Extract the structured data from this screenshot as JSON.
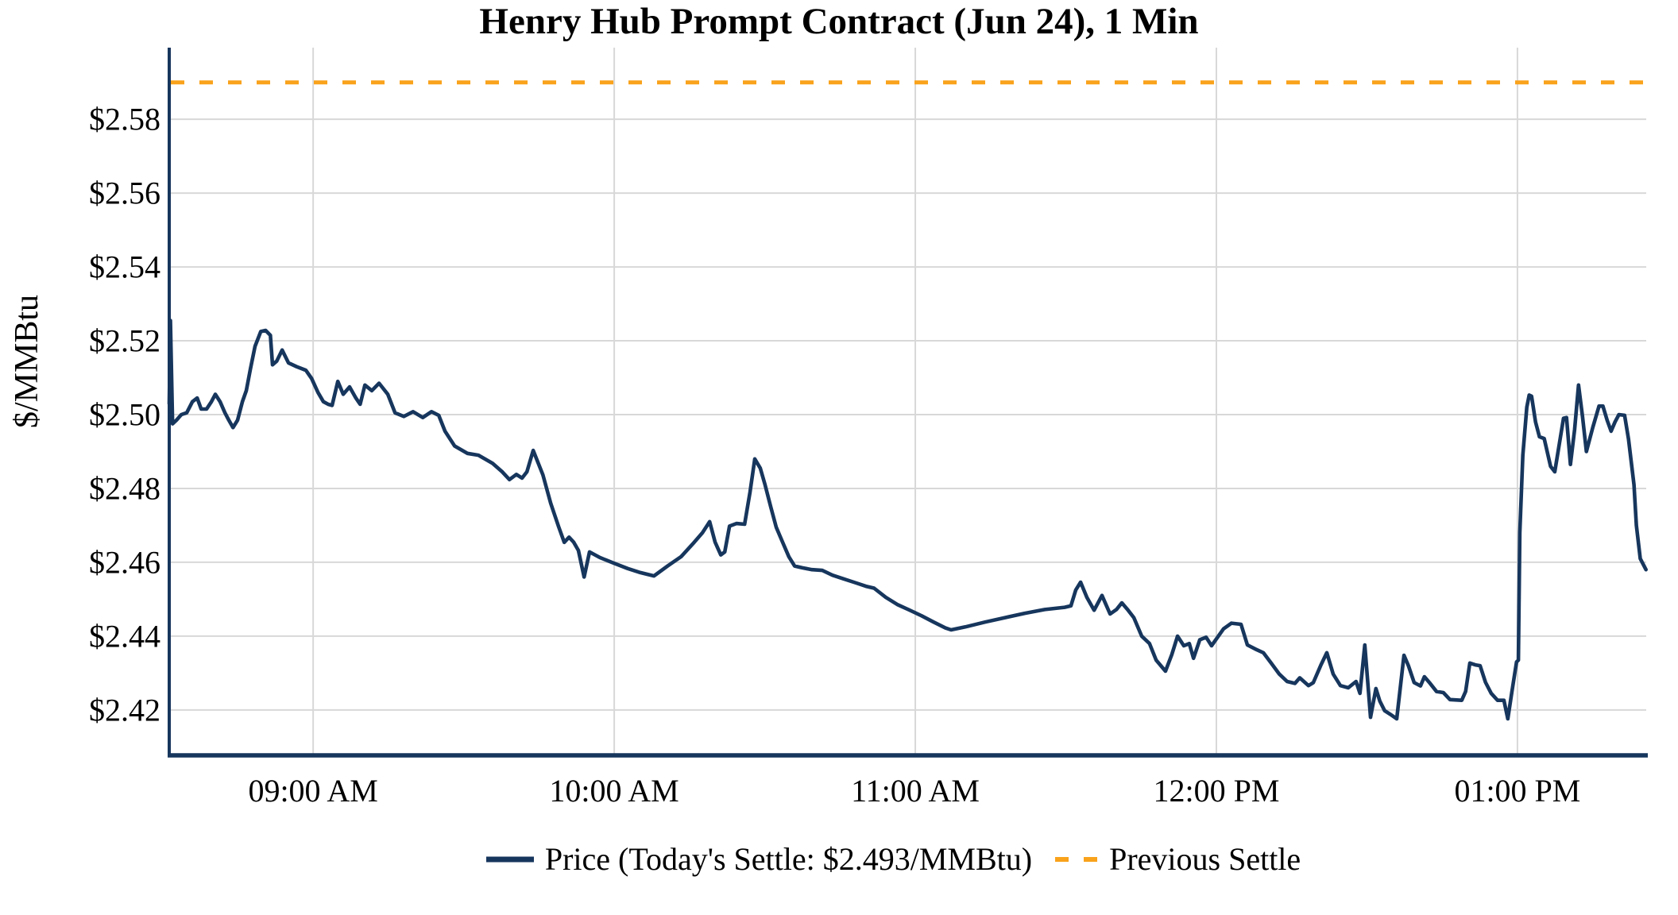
{
  "chart_data": {
    "type": "line",
    "title": "Henry Hub Prompt Contract (Jun 24), 1 Min",
    "ylabel": "$/MMBtu",
    "x_unit": "clock time, decimal hours",
    "x_range": [
      8.522,
      13.433
    ],
    "y_range": [
      2.4077,
      2.5994
    ],
    "grid": true,
    "legend_position": "bottom-center",
    "x_ticks": [
      {
        "value": 9,
        "label": "09:00 AM"
      },
      {
        "value": 10,
        "label": "10:00 AM"
      },
      {
        "value": 11,
        "label": "11:00 AM"
      },
      {
        "value": 12,
        "label": "12:00 PM"
      },
      {
        "value": 13,
        "label": "01:00 PM"
      }
    ],
    "y_ticks": [
      {
        "value": 2.58,
        "label": "$2.58"
      },
      {
        "value": 2.56,
        "label": "$2.56"
      },
      {
        "value": 2.54,
        "label": "$2.54"
      },
      {
        "value": 2.52,
        "label": "$2.52"
      },
      {
        "value": 2.5,
        "label": "$2.50"
      },
      {
        "value": 2.48,
        "label": "$2.48"
      },
      {
        "value": 2.46,
        "label": "$2.46"
      },
      {
        "value": 2.44,
        "label": "$2.44"
      },
      {
        "value": 2.42,
        "label": "$2.42"
      }
    ],
    "previous_settle": {
      "value": 2.59,
      "style": "dashed"
    },
    "todays_settle_value": 2.493,
    "legend": {
      "price_label": "Price (Today's Settle: $2.493/MMBtu)",
      "prev_settle_label": "Previous Settle"
    },
    "colors": {
      "price_line": "#17365D",
      "previous_settle": "#F9A21B",
      "gridline": "#D8D8D8",
      "axis": "#17365D",
      "background": "#FFFFFF",
      "text": "#000000"
    },
    "series": [
      {
        "name": "Price",
        "points": [
          [
            8.522,
            2.503
          ],
          [
            8.526,
            2.5255
          ],
          [
            8.533,
            2.4975
          ],
          [
            8.546,
            2.4985
          ],
          [
            8.562,
            2.5
          ],
          [
            8.58,
            2.5005
          ],
          [
            8.599,
            2.5035
          ],
          [
            8.615,
            2.5045
          ],
          [
            8.628,
            2.5015
          ],
          [
            8.646,
            2.5015
          ],
          [
            8.662,
            2.5035
          ],
          [
            8.675,
            2.5055
          ],
          [
            8.691,
            2.5035
          ],
          [
            8.707,
            2.5005
          ],
          [
            8.72,
            2.4985
          ],
          [
            8.734,
            2.4965
          ],
          [
            8.749,
            2.4985
          ],
          [
            8.765,
            2.5035
          ],
          [
            8.778,
            2.5065
          ],
          [
            8.792,
            2.5125
          ],
          [
            8.807,
            2.5185
          ],
          [
            8.826,
            2.5225
          ],
          [
            8.842,
            2.5228
          ],
          [
            8.858,
            2.5215
          ],
          [
            8.865,
            2.5135
          ],
          [
            8.879,
            2.5145
          ],
          [
            8.897,
            2.5175
          ],
          [
            8.918,
            2.514
          ],
          [
            8.945,
            2.513
          ],
          [
            8.976,
            2.512
          ],
          [
            8.995,
            2.5098
          ],
          [
            9.016,
            2.506
          ],
          [
            9.034,
            2.5035
          ],
          [
            9.05,
            2.5028
          ],
          [
            9.063,
            2.5025
          ],
          [
            9.082,
            2.509
          ],
          [
            9.1,
            2.5055
          ],
          [
            9.121,
            2.5075
          ],
          [
            9.142,
            2.5045
          ],
          [
            9.156,
            2.5028
          ],
          [
            9.172,
            2.508
          ],
          [
            9.195,
            2.5065
          ],
          [
            9.219,
            2.5085
          ],
          [
            9.248,
            2.5055
          ],
          [
            9.272,
            2.5005
          ],
          [
            9.301,
            2.4995
          ],
          [
            9.332,
            2.5008
          ],
          [
            9.364,
            2.4992
          ],
          [
            9.393,
            2.5008
          ],
          [
            9.417,
            2.4998
          ],
          [
            9.438,
            2.4955
          ],
          [
            9.47,
            2.4915
          ],
          [
            9.512,
            2.4895
          ],
          [
            9.549,
            2.489
          ],
          [
            9.596,
            2.4868
          ],
          [
            9.628,
            2.4845
          ],
          [
            9.652,
            2.4824
          ],
          [
            9.675,
            2.4838
          ],
          [
            9.694,
            2.4828
          ],
          [
            9.71,
            2.4845
          ],
          [
            9.731,
            2.4903
          ],
          [
            9.763,
            2.4837
          ],
          [
            9.789,
            2.476
          ],
          [
            9.815,
            2.4697
          ],
          [
            9.834,
            2.4654
          ],
          [
            9.85,
            2.4668
          ],
          [
            9.865,
            2.4655
          ],
          [
            9.881,
            2.4632
          ],
          [
            9.9,
            2.456
          ],
          [
            9.918,
            2.4628
          ],
          [
            9.952,
            2.4613
          ],
          [
            9.997,
            2.4598
          ],
          [
            10.045,
            2.4583
          ],
          [
            10.087,
            2.4572
          ],
          [
            10.132,
            2.4563
          ],
          [
            10.177,
            2.459
          ],
          [
            10.222,
            2.4615
          ],
          [
            10.261,
            2.465
          ],
          [
            10.293,
            2.468
          ],
          [
            10.317,
            2.471
          ],
          [
            10.335,
            2.4655
          ],
          [
            10.354,
            2.462
          ],
          [
            10.367,
            2.4628
          ],
          [
            10.383,
            2.4698
          ],
          [
            10.406,
            2.4705
          ],
          [
            10.433,
            2.4703
          ],
          [
            10.451,
            2.479
          ],
          [
            10.467,
            2.488
          ],
          [
            10.485,
            2.4855
          ],
          [
            10.501,
            2.481
          ],
          [
            10.52,
            2.475
          ],
          [
            10.538,
            2.4695
          ],
          [
            10.559,
            2.4655
          ],
          [
            10.58,
            2.4615
          ],
          [
            10.599,
            2.459
          ],
          [
            10.625,
            2.4585
          ],
          [
            10.657,
            2.458
          ],
          [
            10.691,
            2.4578
          ],
          [
            10.725,
            2.4565
          ],
          [
            10.762,
            2.4555
          ],
          [
            10.8,
            2.4545
          ],
          [
            10.836,
            2.4535
          ],
          [
            10.863,
            2.453
          ],
          [
            10.902,
            2.4505
          ],
          [
            10.942,
            2.4485
          ],
          [
            10.982,
            2.447
          ],
          [
            11.021,
            2.4455
          ],
          [
            11.061,
            2.4438
          ],
          [
            11.1,
            2.4422
          ],
          [
            11.119,
            2.4417
          ],
          [
            11.166,
            2.4425
          ],
          [
            11.232,
            2.4438
          ],
          [
            11.298,
            2.445
          ],
          [
            11.364,
            2.4462
          ],
          [
            11.43,
            2.4472
          ],
          [
            11.496,
            2.4478
          ],
          [
            11.517,
            2.4482
          ],
          [
            11.533,
            2.4525
          ],
          [
            11.549,
            2.4546
          ],
          [
            11.57,
            2.4505
          ],
          [
            11.594,
            2.447
          ],
          [
            11.62,
            2.451
          ],
          [
            11.647,
            2.446
          ],
          [
            11.668,
            2.4472
          ],
          [
            11.686,
            2.449
          ],
          [
            11.707,
            2.447
          ],
          [
            11.726,
            2.445
          ],
          [
            11.752,
            2.44
          ],
          [
            11.778,
            2.438
          ],
          [
            11.8,
            2.4335
          ],
          [
            11.831,
            2.4305
          ],
          [
            11.852,
            2.435
          ],
          [
            11.871,
            2.44
          ],
          [
            11.892,
            2.4374
          ],
          [
            11.91,
            2.438
          ],
          [
            11.924,
            2.434
          ],
          [
            11.945,
            2.439
          ],
          [
            11.966,
            2.4397
          ],
          [
            11.984,
            2.4374
          ],
          [
            12.024,
            2.442
          ],
          [
            12.05,
            2.4435
          ],
          [
            12.082,
            2.4432
          ],
          [
            12.103,
            2.4376
          ],
          [
            12.129,
            2.4365
          ],
          [
            12.156,
            2.4355
          ],
          [
            12.182,
            2.4327
          ],
          [
            12.209,
            2.4297
          ],
          [
            12.235,
            2.4277
          ],
          [
            12.261,
            2.4272
          ],
          [
            12.277,
            2.4287
          ],
          [
            12.306,
            2.4266
          ],
          [
            12.322,
            2.4274
          ],
          [
            12.348,
            2.4323
          ],
          [
            12.367,
            2.4355
          ],
          [
            12.388,
            2.4297
          ],
          [
            12.412,
            2.4266
          ],
          [
            12.438,
            2.426
          ],
          [
            12.464,
            2.4277
          ],
          [
            12.477,
            2.4245
          ],
          [
            12.493,
            2.4376
          ],
          [
            12.512,
            2.418
          ],
          [
            12.53,
            2.4258
          ],
          [
            12.543,
            2.4224
          ],
          [
            12.559,
            2.4198
          ],
          [
            12.578,
            2.4188
          ],
          [
            12.599,
            2.4176
          ],
          [
            12.623,
            2.4348
          ],
          [
            12.638,
            2.432
          ],
          [
            12.657,
            2.4274
          ],
          [
            12.678,
            2.4265
          ],
          [
            12.691,
            2.429
          ],
          [
            12.71,
            2.4272
          ],
          [
            12.731,
            2.425
          ],
          [
            12.754,
            2.4247
          ],
          [
            12.776,
            2.4228
          ],
          [
            12.815,
            2.4226
          ],
          [
            12.828,
            2.425
          ],
          [
            12.842,
            2.4327
          ],
          [
            12.86,
            2.4322
          ],
          [
            12.876,
            2.432
          ],
          [
            12.894,
            2.4275
          ],
          [
            12.913,
            2.4245
          ],
          [
            12.934,
            2.4226
          ],
          [
            12.955,
            2.4226
          ],
          [
            12.968,
            2.4176
          ],
          [
            12.981,
            2.4246
          ],
          [
            12.997,
            2.433
          ],
          [
            13.003,
            2.4335
          ],
          [
            13.008,
            2.468
          ],
          [
            13.018,
            2.489
          ],
          [
            13.031,
            2.502
          ],
          [
            13.039,
            2.5053
          ],
          [
            13.047,
            2.505
          ],
          [
            13.06,
            2.498
          ],
          [
            13.073,
            2.494
          ],
          [
            13.089,
            2.4935
          ],
          [
            13.11,
            2.486
          ],
          [
            13.124,
            2.4845
          ],
          [
            13.153,
            2.499
          ],
          [
            13.163,
            2.4992
          ],
          [
            13.176,
            2.4865
          ],
          [
            13.19,
            2.496
          ],
          [
            13.203,
            2.508
          ],
          [
            13.216,
            2.4995
          ],
          [
            13.229,
            2.49
          ],
          [
            13.25,
            2.4965
          ],
          [
            13.271,
            2.5023
          ],
          [
            13.284,
            2.5023
          ],
          [
            13.298,
            2.4985
          ],
          [
            13.311,
            2.4955
          ],
          [
            13.324,
            2.498
          ],
          [
            13.337,
            2.5
          ],
          [
            13.356,
            2.4998
          ],
          [
            13.369,
            2.4934
          ],
          [
            13.387,
            2.481
          ],
          [
            13.395,
            2.47
          ],
          [
            13.408,
            2.461
          ],
          [
            13.427,
            2.458
          ]
        ]
      }
    ]
  }
}
